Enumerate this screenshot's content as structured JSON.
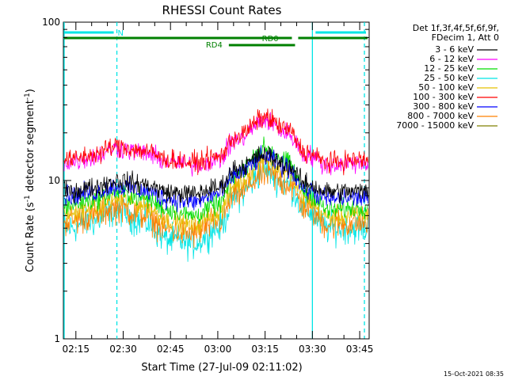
{
  "title": "RHESSI Count Rates",
  "ylabel_main": "Count Rate (s",
  "ylabel_sup": "-1",
  "ylabel_rest": " detector segment",
  "ylabel_sup2": "-1",
  "ylabel_close": ")",
  "xlabel": "Start Time (27-Jul-09 02:11:02)",
  "footer_timestamp": "15-Oct-2021 08:35",
  "legend": {
    "header1": "Det 1f,3f,4f,5f,6f,9f,",
    "header2": "FDecim 1, Att 0"
  },
  "chart_data": {
    "type": "line",
    "xlim": [
      "02:11:02",
      "03:48:00"
    ],
    "ylim": [
      1,
      100
    ],
    "yscale": "log",
    "x_ticks": [
      "02:15",
      "02:30",
      "02:45",
      "03:00",
      "03:15",
      "03:30",
      "03:45"
    ],
    "y_ticks": [
      "1",
      "10",
      "100"
    ],
    "series": [
      {
        "name": "3 - 6 keV",
        "color": "#000000",
        "values": [
          {
            "t": "02:13",
            "y": 8.5
          },
          {
            "t": "02:20",
            "y": 9.0
          },
          {
            "t": "02:28",
            "y": 10.0
          },
          {
            "t": "02:36",
            "y": 9.5
          },
          {
            "t": "02:45",
            "y": 8.4
          },
          {
            "t": "02:52",
            "y": 8.2
          },
          {
            "t": "03:00",
            "y": 9.0
          },
          {
            "t": "03:06",
            "y": 12.0
          },
          {
            "t": "03:15",
            "y": 14.5
          },
          {
            "t": "03:22",
            "y": 12.5
          },
          {
            "t": "03:28",
            "y": 9.5
          },
          {
            "t": "03:35",
            "y": 8.5
          },
          {
            "t": "03:46",
            "y": 8.5
          }
        ]
      },
      {
        "name": "6 - 12 keV",
        "color": "#ff00ff",
        "values": [
          {
            "t": "02:13",
            "y": 13.0
          },
          {
            "t": "02:20",
            "y": 14.0
          },
          {
            "t": "02:28",
            "y": 16.0
          },
          {
            "t": "02:36",
            "y": 15.0
          },
          {
            "t": "02:45",
            "y": 13.0
          },
          {
            "t": "02:52",
            "y": 12.5
          },
          {
            "t": "03:00",
            "y": 13.5
          },
          {
            "t": "03:06",
            "y": 18.0
          },
          {
            "t": "03:15",
            "y": 24.0
          },
          {
            "t": "03:22",
            "y": 20.0
          },
          {
            "t": "03:28",
            "y": 14.5
          },
          {
            "t": "03:35",
            "y": 12.5
          },
          {
            "t": "03:46",
            "y": 13.0
          }
        ]
      },
      {
        "name": "12 - 25 keV",
        "color": "#00dd00",
        "values": [
          {
            "t": "02:13",
            "y": 7.0
          },
          {
            "t": "02:20",
            "y": 7.5
          },
          {
            "t": "02:28",
            "y": 8.5
          },
          {
            "t": "02:36",
            "y": 7.8
          },
          {
            "t": "02:45",
            "y": 6.5
          },
          {
            "t": "02:52",
            "y": 6.0
          },
          {
            "t": "03:00",
            "y": 7.0
          },
          {
            "t": "03:06",
            "y": 11.0
          },
          {
            "t": "03:15",
            "y": 16.0
          },
          {
            "t": "03:22",
            "y": 13.0
          },
          {
            "t": "03:28",
            "y": 8.5
          },
          {
            "t": "03:35",
            "y": 6.5
          },
          {
            "t": "03:46",
            "y": 6.8
          }
        ]
      },
      {
        "name": "25 - 50 keV",
        "color": "#00e5e5",
        "values": [
          {
            "t": "02:13",
            "y": 5.0
          },
          {
            "t": "02:20",
            "y": 5.5
          },
          {
            "t": "02:28",
            "y": 6.5
          },
          {
            "t": "02:36",
            "y": 5.5
          },
          {
            "t": "02:45",
            "y": 4.2
          },
          {
            "t": "02:52",
            "y": 4.0
          },
          {
            "t": "03:00",
            "y": 5.0
          },
          {
            "t": "03:06",
            "y": 8.0
          },
          {
            "t": "03:15",
            "y": 11.5
          },
          {
            "t": "03:22",
            "y": 9.5
          },
          {
            "t": "03:28",
            "y": 6.5
          },
          {
            "t": "03:35",
            "y": 5.0
          },
          {
            "t": "03:46",
            "y": 5.0
          }
        ]
      },
      {
        "name": "50 - 100 keV",
        "color": "#e5c000",
        "values": [
          {
            "t": "02:13",
            "y": 6.2
          },
          {
            "t": "02:20",
            "y": 6.6
          },
          {
            "t": "02:28",
            "y": 7.6
          },
          {
            "t": "02:36",
            "y": 7.0
          },
          {
            "t": "02:45",
            "y": 5.6
          },
          {
            "t": "02:52",
            "y": 5.2
          },
          {
            "t": "03:00",
            "y": 6.2
          },
          {
            "t": "03:06",
            "y": 9.5
          },
          {
            "t": "03:15",
            "y": 13.5
          },
          {
            "t": "03:22",
            "y": 11.0
          },
          {
            "t": "03:28",
            "y": 7.5
          },
          {
            "t": "03:35",
            "y": 5.9
          },
          {
            "t": "03:46",
            "y": 6.0
          }
        ]
      },
      {
        "name": "100 - 300 keV",
        "color": "#ff0000",
        "values": [
          {
            "t": "02:13",
            "y": 13.5
          },
          {
            "t": "02:20",
            "y": 14.5
          },
          {
            "t": "02:28",
            "y": 16.5
          },
          {
            "t": "02:36",
            "y": 15.5
          },
          {
            "t": "02:45",
            "y": 13.5
          },
          {
            "t": "02:52",
            "y": 13.0
          },
          {
            "t": "03:00",
            "y": 14.0
          },
          {
            "t": "03:06",
            "y": 19.0
          },
          {
            "t": "03:15",
            "y": 25.0
          },
          {
            "t": "03:22",
            "y": 21.0
          },
          {
            "t": "03:28",
            "y": 15.0
          },
          {
            "t": "03:35",
            "y": 13.0
          },
          {
            "t": "03:46",
            "y": 13.5
          }
        ]
      },
      {
        "name": "300 - 800 keV",
        "color": "#0000ff",
        "values": [
          {
            "t": "02:13",
            "y": 8.0
          },
          {
            "t": "02:20",
            "y": 8.4
          },
          {
            "t": "02:28",
            "y": 9.2
          },
          {
            "t": "02:36",
            "y": 8.6
          },
          {
            "t": "02:45",
            "y": 7.6
          },
          {
            "t": "02:52",
            "y": 7.3
          },
          {
            "t": "03:00",
            "y": 8.2
          },
          {
            "t": "03:06",
            "y": 11.0
          },
          {
            "t": "03:15",
            "y": 14.0
          },
          {
            "t": "03:22",
            "y": 12.0
          },
          {
            "t": "03:28",
            "y": 8.8
          },
          {
            "t": "03:35",
            "y": 7.6
          },
          {
            "t": "03:46",
            "y": 7.8
          }
        ]
      },
      {
        "name": "800 - 7000 keV",
        "color": "#ff8000",
        "values": [
          {
            "t": "02:13",
            "y": 5.6
          },
          {
            "t": "02:20",
            "y": 6.0
          },
          {
            "t": "02:28",
            "y": 6.8
          },
          {
            "t": "02:36",
            "y": 6.1
          },
          {
            "t": "02:45",
            "y": 4.9
          },
          {
            "t": "02:52",
            "y": 4.6
          },
          {
            "t": "03:00",
            "y": 5.5
          },
          {
            "t": "03:06",
            "y": 8.3
          },
          {
            "t": "03:15",
            "y": 11.0
          },
          {
            "t": "03:22",
            "y": 9.6
          },
          {
            "t": "03:28",
            "y": 6.8
          },
          {
            "t": "03:35",
            "y": 5.3
          },
          {
            "t": "03:46",
            "y": 5.4
          }
        ]
      },
      {
        "name": "7000 - 15000 keV",
        "color": "#808000",
        "values": []
      }
    ],
    "attenuator_bars": [
      {
        "label": "N",
        "color": "#00e5e5",
        "intervals": [
          [
            "02:11:02",
            "02:27:00"
          ],
          [
            "03:31:00",
            "03:47:00"
          ]
        ]
      },
      {
        "label": "RD0",
        "color": "#008000",
        "intervals": [
          [
            "02:11:02",
            "03:23:30"
          ],
          [
            "03:25:30",
            "03:47:30"
          ]
        ]
      },
      {
        "label": "RD4",
        "color": "#008000",
        "intervals": [
          [
            "03:03:30",
            "03:24:30"
          ]
        ]
      }
    ],
    "vertical_markers": [
      {
        "t": "02:11:02",
        "style": "solid",
        "color": "#00e5e5"
      },
      {
        "t": "02:28:00",
        "style": "dashed",
        "color": "#00e5e5"
      },
      {
        "t": "03:30:00",
        "style": "solid",
        "color": "#00e5e5"
      },
      {
        "t": "03:46:30",
        "style": "dashed",
        "color": "#00e5e5"
      }
    ]
  }
}
